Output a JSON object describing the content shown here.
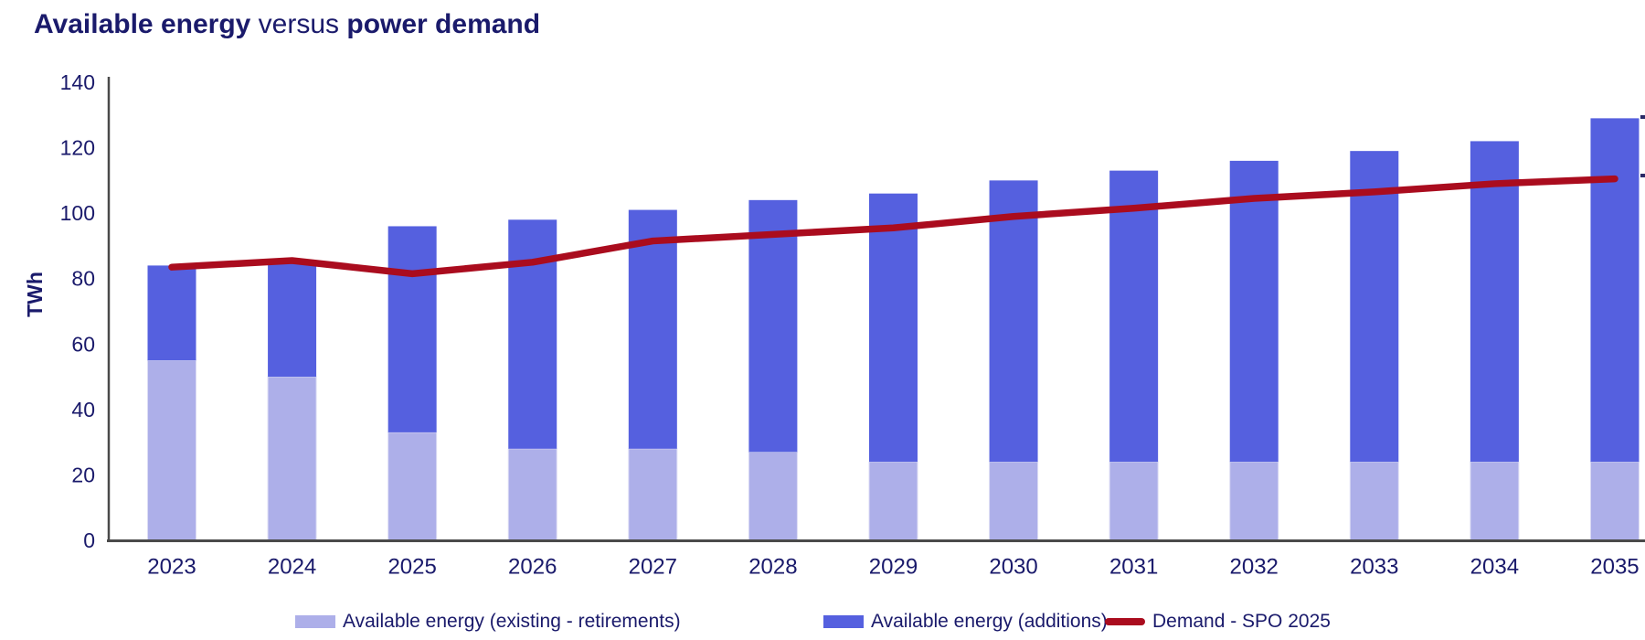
{
  "chart_data": {
    "type": "bar",
    "subtype": "stacked-bars-with-line-overlay",
    "title_parts": [
      "Available energy",
      " versus ",
      "power demand"
    ],
    "ylabel": "TWh",
    "ylim": [
      0,
      140
    ],
    "ytick_step": 20,
    "ytick_labels": [
      "0",
      "20",
      "40",
      "60",
      "80",
      "100",
      "120",
      "140"
    ],
    "grid": "off",
    "legend_position": "bottom",
    "categories": [
      "2023",
      "2024",
      "2025",
      "2026",
      "2027",
      "2028",
      "2029",
      "2030",
      "2031",
      "2032",
      "2033",
      "2034",
      "2035"
    ],
    "series": [
      {
        "name": "Available energy (existing - retirements)",
        "type": "bar",
        "stack": "available",
        "color": "#adafe9",
        "values": [
          55,
          50,
          33,
          28,
          28,
          27,
          24,
          24,
          24,
          24,
          24,
          24,
          24
        ]
      },
      {
        "name": "Available energy (additions)",
        "type": "bar",
        "stack": "available",
        "color": "#5560df",
        "values": [
          29,
          35,
          63,
          70,
          73,
          77,
          82,
          86,
          89,
          92,
          95,
          98,
          105
        ]
      },
      {
        "name": "Demand - SPO 2025",
        "type": "line",
        "color": "#aa0c1e",
        "values": [
          83.5,
          85.5,
          81.5,
          85,
          91.5,
          93.5,
          95.5,
          99,
          101.5,
          104.5,
          106.5,
          109,
          110.5
        ]
      }
    ],
    "stacked_totals": [
      84,
      85,
      96,
      98,
      101,
      104,
      106,
      110,
      113,
      116,
      119,
      122,
      129
    ],
    "colors": {
      "text_navy": "#1a1a6b",
      "axis_gray": "#4a4a4a",
      "bar_existing": "#adafe9",
      "bar_additions": "#5560df",
      "demand_line": "#aa0c1e"
    }
  }
}
